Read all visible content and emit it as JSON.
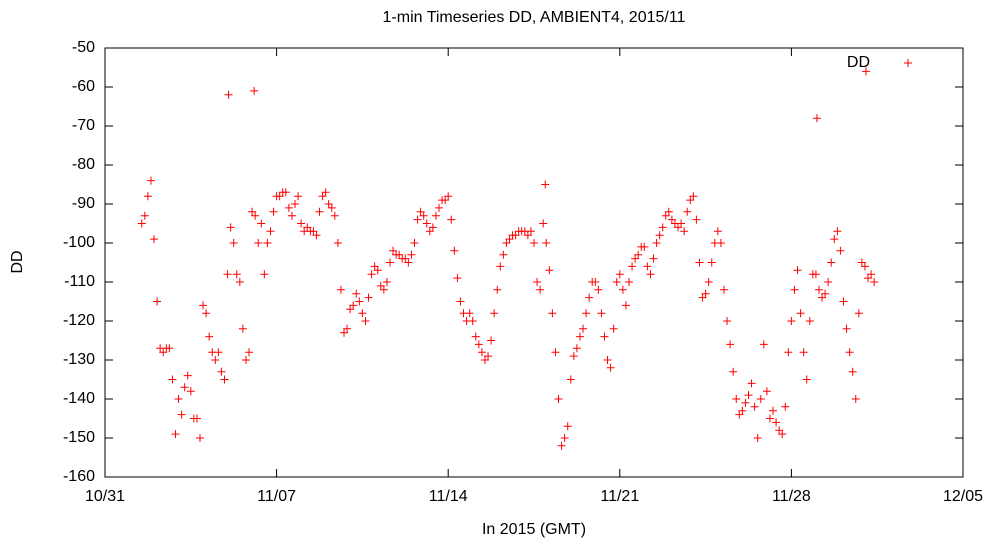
{
  "chart_data": {
    "type": "scatter",
    "title": "1-min Timeseries DD, AMBIENT4, 2015/11",
    "xlabel": "In 2015 (GMT)",
    "ylabel": "DD",
    "legend": "upper right",
    "xlim": [
      "2015-10-31T00:00",
      "2015-12-05T00:00"
    ],
    "xticks": [
      {
        "value": "2015-10-31T00:00",
        "label": "10/31"
      },
      {
        "value": "2015-11-07T00:00",
        "label": "11/07"
      },
      {
        "value": "2015-11-14T00:00",
        "label": "11/14"
      },
      {
        "value": "2015-11-21T00:00",
        "label": "11/21"
      },
      {
        "value": "2015-11-28T00:00",
        "label": "11/28"
      },
      {
        "value": "2015-12-05T00:00",
        "label": "12/05"
      }
    ],
    "ylim": [
      -160,
      -50
    ],
    "yticks": [
      -160,
      -150,
      -140,
      -130,
      -120,
      -110,
      -100,
      -90,
      -80,
      -70,
      -60,
      -50
    ],
    "series": [
      {
        "name": "DD",
        "color": "#ff0000",
        "x": [
          "2015-11-01T12:00",
          "2015-11-01T15:00",
          "2015-11-01T18:00",
          "2015-11-01T21:00",
          "2015-11-02T00:00",
          "2015-11-02T03:00",
          "2015-11-02T06:00",
          "2015-11-02T09:00",
          "2015-11-02T12:00",
          "2015-11-02T15:00",
          "2015-11-02T18:00",
          "2015-11-02T21:00",
          "2015-11-03T00:00",
          "2015-11-03T03:00",
          "2015-11-03T06:00",
          "2015-11-03T09:00",
          "2015-11-03T12:00",
          "2015-11-03T15:00",
          "2015-11-03T18:00",
          "2015-11-03T21:00",
          "2015-11-04T00:00",
          "2015-11-04T03:00",
          "2015-11-04T06:00",
          "2015-11-04T09:00",
          "2015-11-04T12:00",
          "2015-11-04T15:00",
          "2015-11-04T18:00",
          "2015-11-04T21:00",
          "2015-11-05T00:00",
          "2015-11-05T03:00",
          "2015-11-05T06:00",
          "2015-11-05T09:00",
          "2015-11-05T12:00",
          "2015-11-05T15:00",
          "2015-11-05T18:00",
          "2015-11-05T21:00",
          "2015-11-06T00:00",
          "2015-11-06T03:00",
          "2015-11-06T06:00",
          "2015-11-06T09:00",
          "2015-11-06T12:00",
          "2015-11-06T15:00",
          "2015-11-06T18:00",
          "2015-11-06T21:00",
          "2015-11-07T00:00",
          "2015-11-07T03:00",
          "2015-11-07T06:00",
          "2015-11-07T09:00",
          "2015-11-07T12:00",
          "2015-11-07T15:00",
          "2015-11-07T18:00",
          "2015-11-07T21:00",
          "2015-11-08T00:00",
          "2015-11-08T03:00",
          "2015-11-08T06:00",
          "2015-11-08T09:00",
          "2015-11-08T12:00",
          "2015-11-08T15:00",
          "2015-11-08T18:00",
          "2015-11-08T21:00",
          "2015-11-09T00:00",
          "2015-11-09T03:00",
          "2015-11-09T06:00",
          "2015-11-09T09:00",
          "2015-11-09T12:00",
          "2015-11-09T15:00",
          "2015-11-09T18:00",
          "2015-11-09T21:00",
          "2015-11-10T00:00",
          "2015-11-10T03:00",
          "2015-11-10T06:00",
          "2015-11-10T09:00",
          "2015-11-10T12:00",
          "2015-11-10T15:00",
          "2015-11-10T18:00",
          "2015-11-10T21:00",
          "2015-11-11T00:00",
          "2015-11-11T03:00",
          "2015-11-11T06:00",
          "2015-11-11T09:00",
          "2015-11-11T12:00",
          "2015-11-11T15:00",
          "2015-11-11T18:00",
          "2015-11-11T21:00",
          "2015-11-12T00:00",
          "2015-11-12T03:00",
          "2015-11-12T06:00",
          "2015-11-12T09:00",
          "2015-11-12T12:00",
          "2015-11-12T15:00",
          "2015-11-12T18:00",
          "2015-11-12T21:00",
          "2015-11-13T00:00",
          "2015-11-13T03:00",
          "2015-11-13T06:00",
          "2015-11-13T09:00",
          "2015-11-13T12:00",
          "2015-11-13T15:00",
          "2015-11-13T18:00",
          "2015-11-13T21:00",
          "2015-11-14T00:00",
          "2015-11-14T03:00",
          "2015-11-14T06:00",
          "2015-11-14T09:00",
          "2015-11-14T12:00",
          "2015-11-14T15:00",
          "2015-11-14T18:00",
          "2015-11-14T21:00",
          "2015-11-15T00:00",
          "2015-11-15T03:00",
          "2015-11-15T06:00",
          "2015-11-15T09:00",
          "2015-11-15T12:00",
          "2015-11-15T15:00",
          "2015-11-15T18:00",
          "2015-11-15T21:00",
          "2015-11-16T00:00",
          "2015-11-16T03:00",
          "2015-11-16T06:00",
          "2015-11-16T09:00",
          "2015-11-16T12:00",
          "2015-11-16T15:00",
          "2015-11-16T18:00",
          "2015-11-16T21:00",
          "2015-11-17T00:00",
          "2015-11-17T03:00",
          "2015-11-17T06:00",
          "2015-11-17T09:00",
          "2015-11-17T12:00",
          "2015-11-17T15:00",
          "2015-11-17T18:00",
          "2015-11-17T21:00",
          "2015-11-18T00:00",
          "2015-11-18T03:00",
          "2015-11-18T06:00",
          "2015-11-18T09:00",
          "2015-11-18T12:00",
          "2015-11-18T15:00",
          "2015-11-18T18:00",
          "2015-11-18T21:00",
          "2015-11-19T00:00",
          "2015-11-19T03:00",
          "2015-11-19T06:00",
          "2015-11-19T09:00",
          "2015-11-19T12:00",
          "2015-11-19T15:00",
          "2015-11-19T18:00",
          "2015-11-19T21:00",
          "2015-11-20T00:00",
          "2015-11-20T03:00",
          "2015-11-20T06:00",
          "2015-11-20T09:00",
          "2015-11-20T12:00",
          "2015-11-20T15:00",
          "2015-11-20T18:00",
          "2015-11-20T21:00",
          "2015-11-21T00:00",
          "2015-11-21T03:00",
          "2015-11-21T06:00",
          "2015-11-21T09:00",
          "2015-11-21T12:00",
          "2015-11-21T15:00",
          "2015-11-21T18:00",
          "2015-11-21T21:00",
          "2015-11-22T00:00",
          "2015-11-22T03:00",
          "2015-11-22T06:00",
          "2015-11-22T09:00",
          "2015-11-22T12:00",
          "2015-11-22T15:00",
          "2015-11-22T18:00",
          "2015-11-22T21:00",
          "2015-11-23T00:00",
          "2015-11-23T03:00",
          "2015-11-23T06:00",
          "2015-11-23T09:00",
          "2015-11-23T12:00",
          "2015-11-23T15:00",
          "2015-11-23T18:00",
          "2015-11-23T21:00",
          "2015-11-24T00:00",
          "2015-11-24T03:00",
          "2015-11-24T06:00",
          "2015-11-24T09:00",
          "2015-11-24T12:00",
          "2015-11-24T15:00",
          "2015-11-24T18:00",
          "2015-11-24T21:00",
          "2015-11-25T00:00",
          "2015-11-25T03:00",
          "2015-11-25T06:00",
          "2015-11-25T09:00",
          "2015-11-25T12:00",
          "2015-11-25T15:00",
          "2015-11-25T18:00",
          "2015-11-25T21:00",
          "2015-11-26T00:00",
          "2015-11-26T03:00",
          "2015-11-26T06:00",
          "2015-11-26T09:00",
          "2015-11-26T12:00",
          "2015-11-26T15:00",
          "2015-11-26T18:00",
          "2015-11-26T21:00",
          "2015-11-27T00:00",
          "2015-11-27T03:00",
          "2015-11-27T06:00",
          "2015-11-27T09:00",
          "2015-11-27T12:00",
          "2015-11-27T15:00",
          "2015-11-27T18:00",
          "2015-11-27T21:00",
          "2015-11-28T00:00",
          "2015-11-28T03:00",
          "2015-11-28T06:00",
          "2015-11-28T09:00",
          "2015-11-28T12:00",
          "2015-11-28T15:00",
          "2015-11-28T18:00",
          "2015-11-28T21:00",
          "2015-11-29T00:00",
          "2015-11-29T03:00",
          "2015-11-29T06:00",
          "2015-11-29T09:00",
          "2015-11-29T12:00",
          "2015-11-29T15:00",
          "2015-11-29T18:00",
          "2015-11-29T21:00",
          "2015-11-30T00:00",
          "2015-11-30T03:00",
          "2015-11-30T06:00",
          "2015-11-30T09:00",
          "2015-11-30T12:00",
          "2015-11-30T15:00",
          "2015-11-30T18:00",
          "2015-11-30T21:00",
          "2015-12-01T00:00",
          "2015-12-01T03:00",
          "2015-12-01T06:00",
          "2015-12-01T09:00",
          "2015-11-05T01:00",
          "2015-11-06T02:00",
          "2015-11-29T01:00",
          "2015-12-01T01:00",
          "2015-11-17T23:00"
        ],
        "values": [
          -95,
          -93,
          -88,
          -84,
          -99,
          -115,
          -127,
          -128,
          -127,
          -127,
          -135,
          -149,
          -140,
          -144,
          -137,
          -134,
          -138,
          -145,
          -145,
          -150,
          -116,
          -118,
          -124,
          -128,
          -130,
          -128,
          -133,
          -135,
          -108,
          -96,
          -100,
          -108,
          -110,
          -122,
          -130,
          -128,
          -92,
          -93,
          -100,
          -95,
          -108,
          -100,
          -97,
          -92,
          -88,
          -88,
          -87,
          -87,
          -91,
          -93,
          -90,
          -88,
          -95,
          -97,
          -96,
          -97,
          -97,
          -98,
          -92,
          -88,
          -87,
          -90,
          -91,
          -93,
          -100,
          -112,
          -123,
          -122,
          -117,
          -116,
          -113,
          -115,
          -118,
          -120,
          -114,
          -108,
          -106,
          -107,
          -111,
          -112,
          -110,
          -105,
          -102,
          -103,
          -103,
          -104,
          -104,
          -105,
          -103,
          -100,
          -94,
          -92,
          -93,
          -95,
          -97,
          -96,
          -93,
          -91,
          -89,
          -89,
          -88,
          -94,
          -102,
          -109,
          -115,
          -118,
          -120,
          -118,
          -120,
          -124,
          -126,
          -128,
          -130,
          -129,
          -125,
          -118,
          -112,
          -106,
          -103,
          -100,
          -99,
          -98,
          -98,
          -97,
          -97,
          -97,
          -98,
          -97,
          -100,
          -110,
          -112,
          -95,
          -100,
          -107,
          -118,
          -128,
          -140,
          -152,
          -150,
          -147,
          -135,
          -129,
          -127,
          -124,
          -122,
          -118,
          -114,
          -110,
          -110,
          -112,
          -118,
          -124,
          -130,
          -132,
          -122,
          -110,
          -108,
          -112,
          -116,
          -110,
          -106,
          -104,
          -103,
          -101,
          -101,
          -106,
          -108,
          -104,
          -100,
          -98,
          -96,
          -93,
          -92,
          -94,
          -95,
          -96,
          -95,
          -97,
          -92,
          -89,
          -88,
          -94,
          -105,
          -114,
          -113,
          -110,
          -105,
          -100,
          -97,
          -100,
          -112,
          -120,
          -126,
          -133,
          -140,
          -144,
          -143,
          -141,
          -139,
          -136,
          -142,
          -150,
          -140,
          -126,
          -138,
          -145,
          -143,
          -146,
          -148,
          -149,
          -142,
          -128,
          -120,
          -112,
          -107,
          -118,
          -128,
          -135,
          -120,
          -108,
          -108,
          -112,
          -114,
          -113,
          -110,
          -105,
          -99,
          -97,
          -102,
          -115,
          -122,
          -128,
          -133,
          -140,
          -118,
          -105,
          -106,
          -109,
          -108,
          -110,
          -62,
          -61,
          -68,
          -56,
          -85
        ]
      }
    ]
  }
}
